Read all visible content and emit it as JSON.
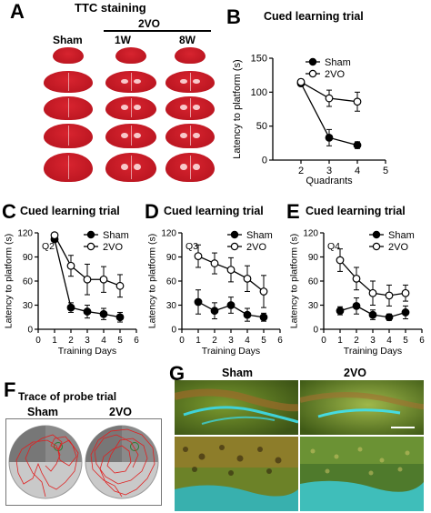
{
  "panels": {
    "A": {
      "letter": "A",
      "title": "TTC staining",
      "group_label": "2VO",
      "col_labels": [
        "Sham",
        "1W",
        "8W"
      ]
    },
    "B": {
      "letter": "B",
      "title": "Cued learning trial"
    },
    "C": {
      "letter": "C",
      "title": "Cued learning trial"
    },
    "D": {
      "letter": "D",
      "title": "Cued learning trial"
    },
    "E": {
      "letter": "E",
      "title": "Cued learning trial"
    },
    "F": {
      "letter": "F",
      "title": "Trace of probe trial",
      "labels": [
        "Sham",
        "2VO"
      ]
    },
    "G": {
      "letter": "G",
      "labels": [
        "Sham",
        "2VO"
      ]
    }
  },
  "colors": {
    "ttc_red": "#d8242f",
    "ttc_dark": "#b3121d",
    "fluor_green": "#6e8f2a",
    "fluor_cyan": "#3fd2d8",
    "fluor_orange": "#b5742a",
    "trace_red": "#e02020",
    "pool_gray": "#bdbdbd"
  },
  "chart_data": [
    {
      "id": "B",
      "type": "line",
      "title": "Cued learning trial",
      "xlabel": "Quadrants",
      "ylabel": "Latency to platform (s)",
      "xlim": [
        1,
        5
      ],
      "ylim": [
        0,
        150
      ],
      "xticks": [
        2,
        3,
        4,
        5
      ],
      "yticks": [
        0,
        50,
        100,
        150
      ],
      "legend": "top-right",
      "inner_label": "",
      "series": [
        {
          "name": "Sham",
          "marker": "filled",
          "x": [
            2,
            3,
            4
          ],
          "y": [
            113,
            33,
            22
          ],
          "err": [
            4,
            12,
            5
          ]
        },
        {
          "name": "2VO",
          "marker": "open",
          "x": [
            2,
            3,
            4
          ],
          "y": [
            115,
            91,
            86
          ],
          "err": [
            4,
            12,
            14
          ]
        }
      ]
    },
    {
      "id": "C",
      "type": "line",
      "title": "Cued learning trial",
      "xlabel": "Training Days",
      "ylabel": "Latency to platform (s)",
      "xlim": [
        0,
        6
      ],
      "ylim": [
        0,
        120
      ],
      "xticks": [
        0,
        1,
        2,
        3,
        4,
        5,
        6
      ],
      "yticks": [
        0,
        30,
        60,
        90,
        120
      ],
      "legend": "top-right",
      "inner_label": "Q2",
      "series": [
        {
          "name": "Sham",
          "marker": "filled",
          "x": [
            1,
            2,
            3,
            4,
            5
          ],
          "y": [
            112,
            27,
            22,
            19,
            15
          ],
          "err": [
            3,
            6,
            8,
            7,
            6
          ]
        },
        {
          "name": "2VO",
          "marker": "open",
          "x": [
            1,
            2,
            3,
            4,
            5
          ],
          "y": [
            117,
            79,
            62,
            62,
            54
          ],
          "err": [
            3,
            13,
            19,
            16,
            14
          ]
        }
      ]
    },
    {
      "id": "D",
      "type": "line",
      "title": "Cued learning trial",
      "xlabel": "Training Days",
      "ylabel": "Latency to platform (s)",
      "xlim": [
        0,
        6
      ],
      "ylim": [
        0,
        120
      ],
      "xticks": [
        0,
        1,
        2,
        3,
        4,
        5,
        6
      ],
      "yticks": [
        0,
        30,
        60,
        90,
        120
      ],
      "legend": "top-right",
      "inner_label": "Q3",
      "series": [
        {
          "name": "Sham",
          "marker": "filled",
          "x": [
            1,
            2,
            3,
            4,
            5
          ],
          "y": [
            34,
            23,
            30,
            18,
            15
          ],
          "err": [
            15,
            10,
            10,
            8,
            5
          ]
        },
        {
          "name": "2VO",
          "marker": "open",
          "x": [
            1,
            2,
            3,
            4,
            5
          ],
          "y": [
            91,
            82,
            74,
            63,
            47
          ],
          "err": [
            14,
            13,
            15,
            16,
            20
          ]
        }
      ]
    },
    {
      "id": "E",
      "type": "line",
      "title": "Cued learning trial",
      "xlabel": "Training Days",
      "ylabel": "Latency to platform (s)",
      "xlim": [
        0,
        6
      ],
      "ylim": [
        0,
        120
      ],
      "xticks": [
        0,
        1,
        2,
        3,
        4,
        5,
        6
      ],
      "yticks": [
        0,
        30,
        60,
        90,
        120
      ],
      "legend": "top-right",
      "inner_label": "Q4",
      "series": [
        {
          "name": "Sham",
          "marker": "filled",
          "x": [
            1,
            2,
            3,
            4,
            5
          ],
          "y": [
            23,
            29,
            18,
            15,
            21
          ],
          "err": [
            5,
            10,
            6,
            4,
            8
          ]
        },
        {
          "name": "2VO",
          "marker": "open",
          "x": [
            1,
            2,
            3,
            4,
            5
          ],
          "y": [
            86,
            63,
            45,
            42,
            45
          ],
          "err": [
            14,
            14,
            15,
            13,
            10
          ]
        }
      ]
    }
  ]
}
